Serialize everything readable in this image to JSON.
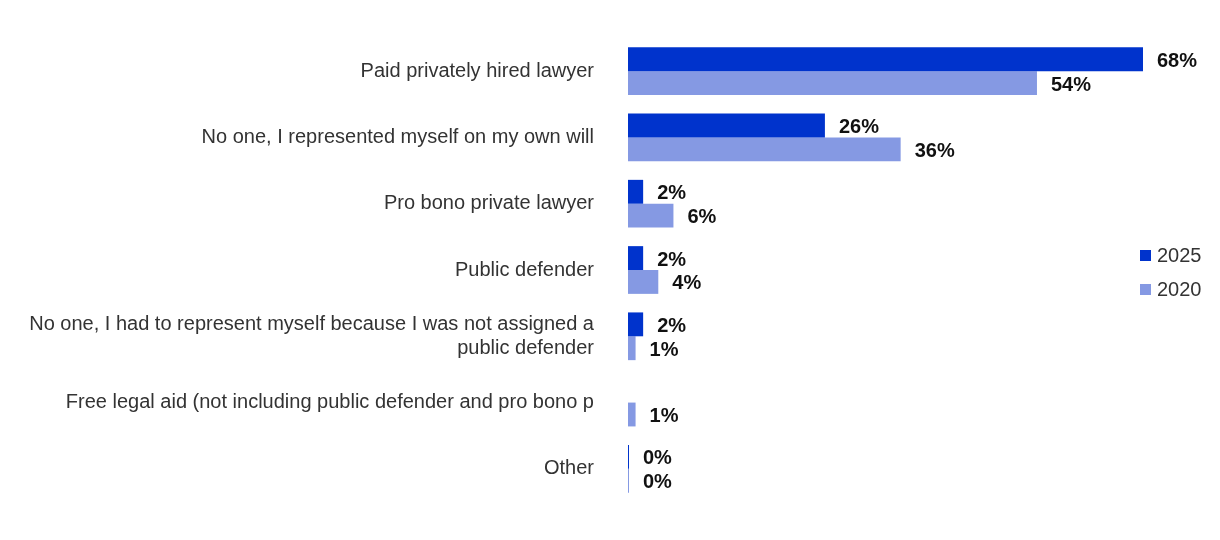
{
  "chart_data": {
    "type": "bar",
    "orientation": "horizontal",
    "legend": "right",
    "categories": [
      "Paid privately hired lawyer",
      "No one, I represented myself on my own will",
      "Pro bono private lawyer",
      "Public defender",
      "No one, I had to represent myself because I was not assigned a public defender",
      "Free legal aid (not including public defender and pro bono p",
      "Other"
    ],
    "series": [
      {
        "name": "2025",
        "color": "#0033cc",
        "values": [
          68,
          26,
          2,
          2,
          2,
          null,
          0
        ],
        "value_labels": [
          "68%",
          "26%",
          "2%",
          "2%",
          "2%",
          null,
          "0%"
        ]
      },
      {
        "name": "2020",
        "color": "#8599e3",
        "values": [
          54,
          36,
          6,
          4,
          1,
          1,
          0
        ],
        "value_labels": [
          "54%",
          "36%",
          "6%",
          "4%",
          "1%",
          "1%",
          "0%"
        ]
      }
    ]
  }
}
